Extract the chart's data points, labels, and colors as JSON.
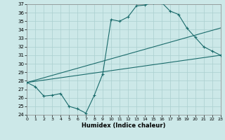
{
  "title": "",
  "xlabel": "Humidex (Indice chaleur)",
  "ylabel": "",
  "bg_color": "#cce8e8",
  "grid_color": "#aacfcf",
  "line_color": "#1a6b6b",
  "ylim": [
    24,
    37
  ],
  "xlim": [
    0,
    23
  ],
  "yticks": [
    24,
    25,
    26,
    27,
    28,
    29,
    30,
    31,
    32,
    33,
    34,
    35,
    36,
    37
  ],
  "xticks": [
    0,
    1,
    2,
    3,
    4,
    5,
    6,
    7,
    8,
    9,
    10,
    11,
    12,
    13,
    14,
    15,
    16,
    17,
    18,
    19,
    20,
    21,
    22,
    23
  ],
  "line1_x": [
    0,
    1,
    2,
    3,
    4,
    5,
    6,
    7,
    8,
    9,
    10,
    11,
    12,
    13,
    14,
    15,
    16,
    17,
    18,
    19,
    20,
    21,
    22,
    23
  ],
  "line1_y": [
    27.8,
    27.3,
    26.2,
    26.3,
    26.5,
    25.0,
    24.7,
    24.2,
    26.3,
    28.8,
    35.2,
    35.0,
    35.5,
    36.8,
    36.9,
    37.2,
    37.2,
    36.2,
    35.8,
    34.2,
    33.1,
    32.0,
    31.5,
    31.0
  ],
  "line2_x": [
    0,
    23
  ],
  "line2_y": [
    27.8,
    34.2
  ],
  "line3_x": [
    0,
    23
  ],
  "line3_y": [
    27.8,
    31.0
  ]
}
